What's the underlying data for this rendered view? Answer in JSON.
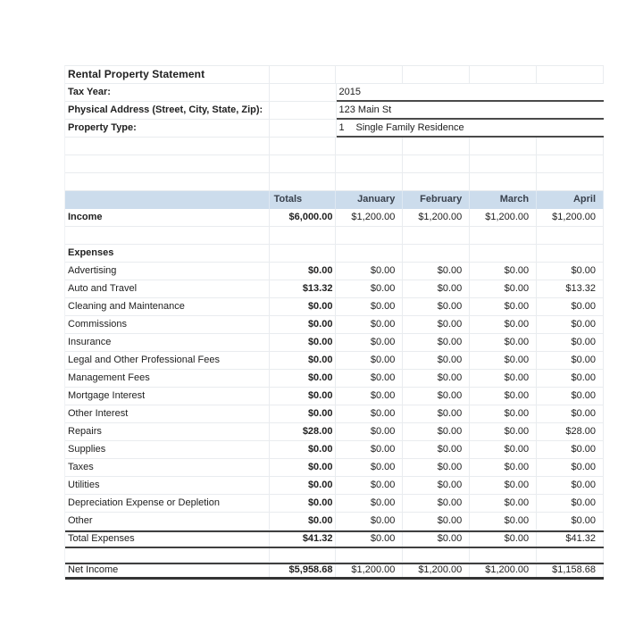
{
  "title": "Rental Property Statement",
  "fields": [
    {
      "label": "Tax Year:",
      "value": "2015"
    },
    {
      "label": "Physical Address (Street, City, State, Zip):",
      "value": "123 Main St"
    },
    {
      "label": "Property Type:",
      "code": "1",
      "value": "Single Family Residence"
    }
  ],
  "table": {
    "columns": [
      "Totals",
      "January",
      "February",
      "March",
      "April"
    ],
    "income": {
      "label": "Income",
      "totals": "$6,000.00",
      "months": [
        "$1,200.00",
        "$1,200.00",
        "$1,200.00",
        "$1,200.00"
      ]
    },
    "expenses_header": "Expenses",
    "expense_rows": [
      {
        "label": "Advertising",
        "totals": "$0.00",
        "months": [
          "$0.00",
          "$0.00",
          "$0.00",
          "$0.00"
        ]
      },
      {
        "label": "Auto and Travel",
        "totals": "$13.32",
        "months": [
          "$0.00",
          "$0.00",
          "$0.00",
          "$13.32"
        ]
      },
      {
        "label": "Cleaning and Maintenance",
        "totals": "$0.00",
        "months": [
          "$0.00",
          "$0.00",
          "$0.00",
          "$0.00"
        ]
      },
      {
        "label": "Commissions",
        "totals": "$0.00",
        "months": [
          "$0.00",
          "$0.00",
          "$0.00",
          "$0.00"
        ]
      },
      {
        "label": "Insurance",
        "totals": "$0.00",
        "months": [
          "$0.00",
          "$0.00",
          "$0.00",
          "$0.00"
        ]
      },
      {
        "label": "Legal and Other Professional Fees",
        "totals": "$0.00",
        "months": [
          "$0.00",
          "$0.00",
          "$0.00",
          "$0.00"
        ]
      },
      {
        "label": "Management Fees",
        "totals": "$0.00",
        "months": [
          "$0.00",
          "$0.00",
          "$0.00",
          "$0.00"
        ]
      },
      {
        "label": "Mortgage Interest",
        "totals": "$0.00",
        "months": [
          "$0.00",
          "$0.00",
          "$0.00",
          "$0.00"
        ]
      },
      {
        "label": "Other Interest",
        "totals": "$0.00",
        "months": [
          "$0.00",
          "$0.00",
          "$0.00",
          "$0.00"
        ]
      },
      {
        "label": "Repairs",
        "totals": "$28.00",
        "months": [
          "$0.00",
          "$0.00",
          "$0.00",
          "$28.00"
        ]
      },
      {
        "label": "Supplies",
        "totals": "$0.00",
        "months": [
          "$0.00",
          "$0.00",
          "$0.00",
          "$0.00"
        ]
      },
      {
        "label": "Taxes",
        "totals": "$0.00",
        "months": [
          "$0.00",
          "$0.00",
          "$0.00",
          "$0.00"
        ]
      },
      {
        "label": "Utilities",
        "totals": "$0.00",
        "months": [
          "$0.00",
          "$0.00",
          "$0.00",
          "$0.00"
        ]
      },
      {
        "label": "Depreciation Expense or Depletion",
        "totals": "$0.00",
        "months": [
          "$0.00",
          "$0.00",
          "$0.00",
          "$0.00"
        ]
      },
      {
        "label": "Other",
        "totals": "$0.00",
        "months": [
          "$0.00",
          "$0.00",
          "$0.00",
          "$0.00"
        ]
      }
    ],
    "total_expenses": {
      "label": "Total Expenses",
      "totals": "$41.32",
      "months": [
        "$0.00",
        "$0.00",
        "$0.00",
        "$41.32"
      ]
    },
    "net_income": {
      "label": "Net Income",
      "totals": "$5,958.68",
      "months": [
        "$1,200.00",
        "$1,200.00",
        "$1,200.00",
        "$1,158.68"
      ]
    }
  },
  "colors": {
    "band": "#ccdcec",
    "band_text": "#39414d",
    "text": "#212121",
    "gridline": "#e9ecef",
    "underline": "#4a4a4a",
    "rule": "#3f3f3f"
  }
}
